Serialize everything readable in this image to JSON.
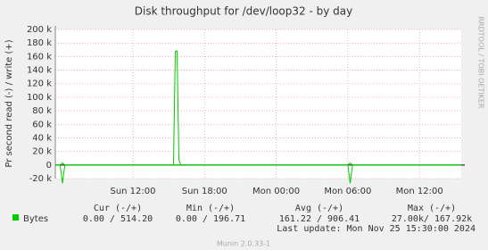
{
  "chart_data": {
    "type": "line",
    "title": "Disk throughput for /dev/loop32 - by day",
    "y_label": "Pr second read (-) / write (+)",
    "side_text": "RRDTOOL / TOBI OETIKER",
    "x": [
      5.5,
      5.9,
      6.1,
      6.3,
      15.4,
      15.55,
      15.7,
      15.85,
      16.0,
      30.0,
      30.2,
      30.4,
      39.5
    ],
    "series": [
      {
        "name": "Bytes",
        "color": "#00cc00",
        "write": [
          0,
          0,
          3000,
          0,
          0,
          168000,
          168000,
          8000,
          0,
          0,
          3000,
          0,
          0
        ],
        "read": [
          0,
          0,
          -27000,
          0,
          0,
          0,
          0,
          0,
          0,
          0,
          -27000,
          0,
          0
        ]
      }
    ],
    "xlim": [
      5.5,
      39.5
    ],
    "xticks": [
      {
        "value": 12,
        "label": "Sun 12:00"
      },
      {
        "value": 18,
        "label": "Sun 18:00"
      },
      {
        "value": 24,
        "label": "Mon 00:00"
      },
      {
        "value": 30,
        "label": "Mon 06:00"
      },
      {
        "value": 36,
        "label": "Mon 12:00"
      }
    ],
    "ylim": [
      -20000,
      200000
    ],
    "yticks": [
      {
        "value": -20000,
        "label": "-20 k"
      },
      0,
      {
        "value": 20000,
        "label": "20 k"
      },
      {
        "value": 40000,
        "label": "40 k"
      },
      {
        "value": 60000,
        "label": "60 k"
      },
      {
        "value": 80000,
        "label": "80 k"
      },
      {
        "value": 100000,
        "label": "100 k"
      },
      {
        "value": 120000,
        "label": "120 k"
      },
      {
        "value": 140000,
        "label": "140 k"
      },
      {
        "value": 160000,
        "label": "160 k"
      },
      {
        "value": 180000,
        "label": "180 k"
      },
      {
        "value": 200000,
        "label": "200 k"
      }
    ],
    "grid": true,
    "legend": {
      "headers": [
        "Cur (-/+)",
        "Min (-/+)",
        "Avg (-/+)",
        "Max (-/+)"
      ],
      "rows": [
        [
          "0.00 / 514.20",
          "0.00 / 196.71",
          "161.22 / 906.41",
          "27.00k/ 167.92k"
        ]
      ]
    },
    "last_update": "Last update: Mon Nov 25 15:30:00 2024",
    "footer": "Munin 2.0.33-1"
  }
}
